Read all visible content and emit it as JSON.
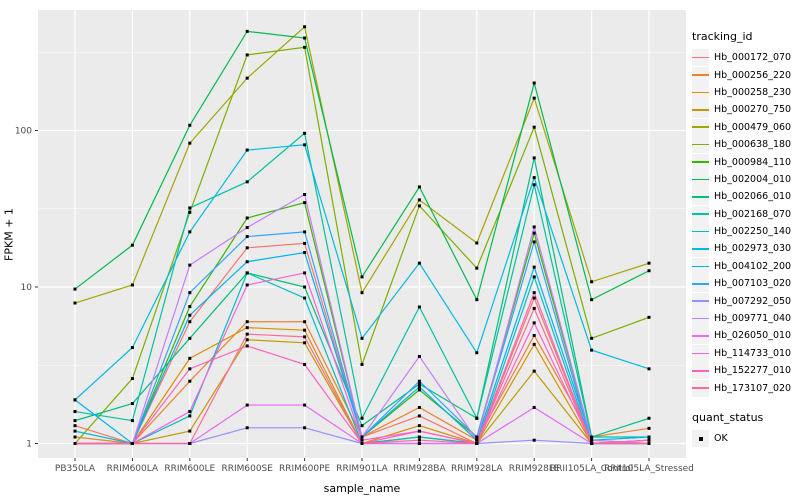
{
  "chart_data": {
    "type": "line",
    "title": "",
    "xlabel": "sample_name",
    "ylabel": "FPKM + 1",
    "y_scale": "log10",
    "y_ticks": [
      1,
      10,
      100
    ],
    "y_minor_ticks": [
      3.1623,
      31.623,
      316.23
    ],
    "ylim_log_px_note": "log decade spacing, range ~0.95 to ~590",
    "grid": true,
    "panel_color": "#EBEBEB",
    "gridline_color": "#FFFFFF",
    "point_color": "#000000",
    "legend_position": "right",
    "categories": [
      "PB350LA",
      "RRIM600LA",
      "RRIM600LE",
      "RRIM600SE",
      "RRIM600PE",
      "RRIM901LA",
      "RRIM928BA",
      "RRIM928LA",
      "RRIM928LE",
      "RRII105LA_Control",
      "RRII105LA_Stressed"
    ],
    "series": [
      {
        "name": "Hb_000172_070",
        "color": "#F8766D",
        "values": [
          1.3,
          1.0,
          6.0,
          17.8,
          19.0,
          1.1,
          1.5,
          1.0,
          8.5,
          1.0,
          1.05
        ]
      },
      {
        "name": "Hb_000256_220",
        "color": "#EA8331",
        "values": [
          1.1,
          1.0,
          2.5,
          6.0,
          6.0,
          1.1,
          1.7,
          1.05,
          4.9,
          1.1,
          1.25
        ]
      },
      {
        "name": "Hb_000258_230",
        "color": "#D89000",
        "values": [
          1.0,
          1.0,
          3.5,
          5.5,
          5.3,
          1.0,
          1.3,
          1.0,
          4.3,
          1.0,
          1.0
        ]
      },
      {
        "name": "Hb_000270_750",
        "color": "#C09B00",
        "values": [
          1.0,
          1.0,
          1.2,
          4.6,
          4.4,
          1.0,
          1.1,
          1.0,
          2.9,
          1.0,
          1.0
        ]
      },
      {
        "name": "Hb_000479_060",
        "color": "#A3A500",
        "values": [
          7.9,
          10.3,
          83,
          216,
          460,
          9.2,
          36,
          19.1,
          161,
          10.8,
          14.2
        ]
      },
      {
        "name": "Hb_000638_180",
        "color": "#7CAE00",
        "values": [
          1.0,
          2.6,
          30,
          304,
          340,
          3.2,
          33,
          13.2,
          105,
          4.7,
          6.4
        ]
      },
      {
        "name": "Hb_000984_110",
        "color": "#39B600",
        "values": [
          1.0,
          1.0,
          7.5,
          27.6,
          34.6,
          1.1,
          2.2,
          1.1,
          22.1,
          1.05,
          1.0
        ]
      },
      {
        "name": "Hb_002004_010",
        "color": "#00BB4E",
        "values": [
          9.7,
          18.5,
          108,
          430,
          390,
          11.6,
          43.6,
          8.3,
          201,
          8.3,
          12.7
        ]
      },
      {
        "name": "Hb_002066_010",
        "color": "#00BF7D",
        "values": [
          1.4,
          1.8,
          4.7,
          12.3,
          10.0,
          1.3,
          2.4,
          1.45,
          66.8,
          1.1,
          1.45
        ]
      },
      {
        "name": "Hb_002168_070",
        "color": "#00C1A3",
        "values": [
          1.6,
          1.4,
          32,
          47,
          96,
          1.45,
          7.45,
          1.45,
          45,
          1.1,
          1.1
        ]
      },
      {
        "name": "Hb_002250_140",
        "color": "#00BFC4",
        "values": [
          1.2,
          1.0,
          1.5,
          12.3,
          8.5,
          1.0,
          1.1,
          1.0,
          11.6,
          1.0,
          1.0
        ]
      },
      {
        "name": "Hb_002973_030",
        "color": "#00BAE0",
        "values": [
          1.9,
          4.1,
          22.5,
          75,
          81,
          4.7,
          14.2,
          3.8,
          50,
          3.95,
          3.0
        ]
      },
      {
        "name": "Hb_004102_200",
        "color": "#00B0F6",
        "values": [
          1.9,
          1.0,
          6.6,
          14.5,
          16.6,
          1.1,
          2.3,
          1.05,
          13.4,
          1.05,
          1.1
        ]
      },
      {
        "name": "Hb_007103_020",
        "color": "#35A2FF",
        "values": [
          1.0,
          1.0,
          9.2,
          21,
          22.5,
          1.1,
          2.5,
          1.1,
          19.4,
          1.0,
          1.05
        ]
      },
      {
        "name": "Hb_007292_050",
        "color": "#9590FF",
        "values": [
          1.0,
          1.0,
          1.0,
          1.26,
          1.26,
          1.0,
          1.0,
          1.0,
          1.05,
          1.0,
          1.0
        ]
      },
      {
        "name": "Hb_009771_040",
        "color": "#C77CFF",
        "values": [
          1.0,
          1.0,
          13.8,
          24,
          39,
          1.1,
          3.6,
          1.05,
          24.2,
          1.05,
          1.0
        ]
      },
      {
        "name": "Hb_026050_010",
        "color": "#E76BF3",
        "values": [
          1.0,
          1.0,
          1.0,
          1.76,
          1.76,
          1.0,
          1.0,
          1.0,
          1.7,
          1.0,
          1.0
        ]
      },
      {
        "name": "Hb_114733_010",
        "color": "#FA62DB",
        "values": [
          1.0,
          1.0,
          1.6,
          10.3,
          12.3,
          1.05,
          1.2,
          1.0,
          5.9,
          1.0,
          1.0
        ]
      },
      {
        "name": "Hb_152277_010",
        "color": "#FF62BC",
        "values": [
          1.0,
          1.0,
          3.0,
          4.2,
          3.2,
          1.0,
          1.2,
          1.0,
          9.2,
          1.0,
          1.05
        ]
      },
      {
        "name": "Hb_173107_020",
        "color": "#FF6A98",
        "values": [
          1.0,
          1.0,
          1.0,
          5.0,
          4.8,
          1.0,
          1.05,
          1.0,
          7.3,
          1.0,
          1.0
        ]
      }
    ]
  },
  "legend": {
    "tracking_title": "tracking_id",
    "quant_title": "quant_status",
    "quant_items": [
      {
        "label": "OK",
        "marker": "black-square"
      }
    ]
  },
  "style": {
    "tick_label_color": "#4D4D4D",
    "axis_tick_color": "#333333"
  }
}
